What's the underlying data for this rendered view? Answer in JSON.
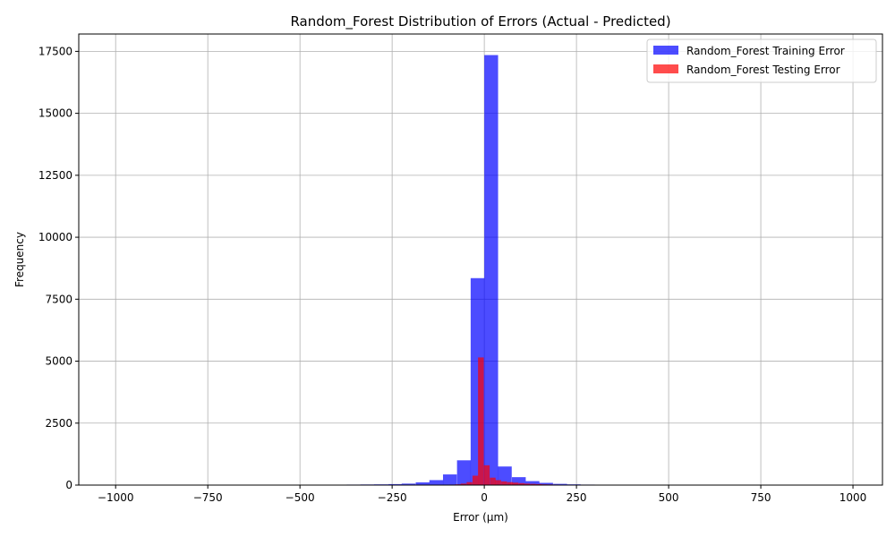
{
  "chart_data": {
    "type": "bar",
    "title": "Random_Forest Distribution of Errors (Actual - Predicted)",
    "xlabel": "Error (µm)",
    "ylabel": "Frequency",
    "xlim": [
      -1100,
      1080
    ],
    "ylim": [
      0,
      18200
    ],
    "x_ticks": [
      -1000,
      -750,
      -500,
      -250,
      0,
      250,
      500,
      750,
      1000
    ],
    "x_tick_labels": [
      "−1000",
      "−750",
      "−500",
      "−250",
      "0",
      "250",
      "500",
      "750",
      "1000"
    ],
    "y_ticks": [
      0,
      2500,
      5000,
      7500,
      10000,
      12500,
      15000,
      17500
    ],
    "y_tick_labels": [
      "0",
      "2500",
      "5000",
      "7500",
      "10000",
      "12500",
      "15000",
      "17500"
    ],
    "grid": true,
    "legend_position": "top-right",
    "series": [
      {
        "name": "Random_Forest Training Error",
        "color": "#0000ff",
        "opacity": 0.7,
        "bin_width": 37.4,
        "bin_starts": [
          -448,
          -411,
          -373,
          -336,
          -299,
          -261,
          -224,
          -186,
          -149,
          -112,
          -74,
          -37,
          0,
          37,
          75,
          112,
          149,
          187,
          224,
          262,
          299,
          336,
          374
        ],
        "values": [
          10,
          15,
          20,
          25,
          30,
          40,
          60,
          110,
          200,
          430,
          1000,
          8350,
          17350,
          750,
          320,
          160,
          90,
          50,
          30,
          20,
          15,
          10,
          8
        ]
      },
      {
        "name": "Random_Forest Testing Error",
        "color": "#ff0000",
        "opacity": 0.7,
        "bin_width": 15.6,
        "bin_starts": [
          -142,
          -126,
          -111,
          -95,
          -79,
          -64,
          -48,
          -32,
          -17,
          -1,
          15,
          30,
          46,
          62,
          77,
          93,
          108,
          124,
          140,
          155,
          171,
          186,
          202
        ],
        "values": [
          8,
          10,
          15,
          20,
          30,
          60,
          120,
          380,
          5150,
          800,
          300,
          200,
          150,
          120,
          100,
          80,
          60,
          50,
          40,
          30,
          25,
          20,
          15
        ]
      }
    ]
  }
}
